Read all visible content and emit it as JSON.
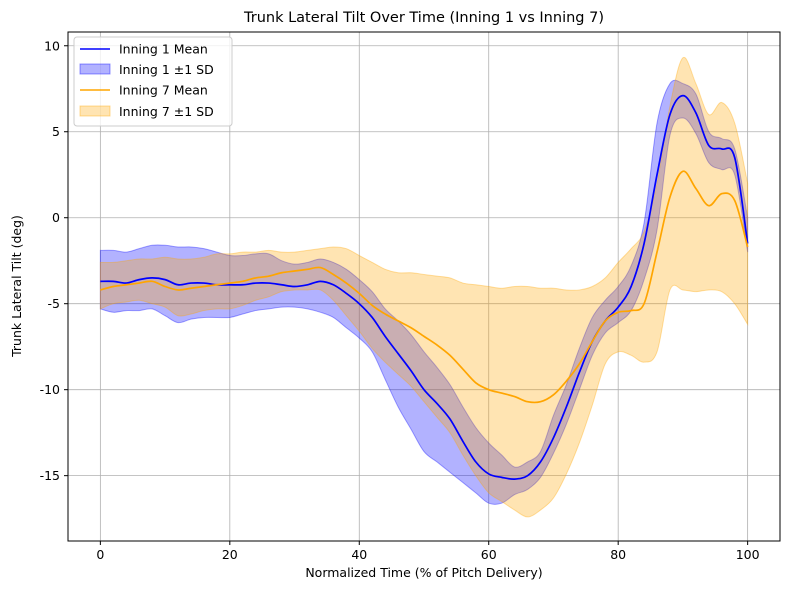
{
  "chart_data": {
    "type": "line",
    "title": "Trunk Lateral Tilt Over Time (Inning 1 vs Inning 7)",
    "xlabel": "Normalized Time (% of Pitch Delivery)",
    "ylabel": "Trunk Lateral Tilt (deg)",
    "xlim": [
      -5,
      105
    ],
    "ylim": [
      -18.8,
      10.8
    ],
    "xticks": [
      0,
      20,
      40,
      60,
      80,
      100
    ],
    "yticks": [
      -15,
      -10,
      -5,
      0,
      5,
      10
    ],
    "grid": true,
    "legend_position": "top-left",
    "x": [
      0,
      2,
      4,
      6,
      8,
      10,
      12,
      14,
      16,
      18,
      20,
      22,
      24,
      26,
      28,
      30,
      32,
      34,
      36,
      38,
      40,
      42,
      44,
      46,
      48,
      50,
      52,
      54,
      56,
      58,
      60,
      62,
      64,
      66,
      68,
      70,
      72,
      74,
      76,
      78,
      80,
      82,
      84,
      86,
      88,
      90,
      92,
      94,
      96,
      98,
      100
    ],
    "series": [
      {
        "name": "Inning 1 Mean",
        "kind": "mean",
        "color": "#0000ff",
        "values": [
          -3.7,
          -3.7,
          -3.8,
          -3.6,
          -3.5,
          -3.6,
          -3.9,
          -3.8,
          -3.8,
          -3.9,
          -3.9,
          -3.9,
          -3.8,
          -3.8,
          -3.9,
          -4.0,
          -3.9,
          -3.7,
          -3.9,
          -4.4,
          -5.0,
          -5.8,
          -6.9,
          -7.9,
          -8.9,
          -10.0,
          -10.8,
          -11.7,
          -13.0,
          -14.2,
          -14.9,
          -15.1,
          -15.2,
          -15.0,
          -14.2,
          -12.8,
          -11.0,
          -9.0,
          -7.2,
          -6.0,
          -5.2,
          -4.0,
          -1.5,
          2.5,
          6.0,
          7.1,
          6.1,
          4.2,
          4.0,
          3.5,
          -1.5
        ]
      },
      {
        "name": "Inning 1 ±1 SD",
        "kind": "band",
        "color": "#0000ff",
        "opacity": 0.3,
        "upper": [
          -1.9,
          -1.9,
          -2.0,
          -1.8,
          -1.6,
          -1.6,
          -1.7,
          -1.7,
          -1.8,
          -2.0,
          -2.2,
          -2.2,
          -2.1,
          -2.1,
          -2.5,
          -2.7,
          -2.6,
          -2.4,
          -2.6,
          -3.0,
          -3.6,
          -4.3,
          -5.3,
          -6.0,
          -6.8,
          -7.8,
          -8.7,
          -9.7,
          -11.0,
          -12.2,
          -13.1,
          -13.8,
          -14.5,
          -14.2,
          -13.6,
          -11.5,
          -9.7,
          -7.6,
          -5.8,
          -4.8,
          -4.0,
          -2.8,
          -0.3,
          5.5,
          7.8,
          7.8,
          7.2,
          5.0,
          4.6,
          4.0,
          0.0
        ],
        "lower": [
          -5.3,
          -5.5,
          -5.4,
          -5.4,
          -5.3,
          -5.7,
          -6.1,
          -5.9,
          -5.8,
          -5.8,
          -5.8,
          -5.6,
          -5.4,
          -5.3,
          -5.2,
          -5.2,
          -5.3,
          -5.5,
          -5.8,
          -6.4,
          -7.0,
          -7.8,
          -9.4,
          -11.0,
          -12.3,
          -13.6,
          -14.2,
          -14.8,
          -15.4,
          -16.0,
          -16.6,
          -16.6,
          -16.1,
          -15.8,
          -15.1,
          -13.7,
          -12.0,
          -10.0,
          -8.0,
          -6.7,
          -6.1,
          -5.4,
          -3.6,
          -0.7,
          4.8,
          5.8,
          4.9,
          3.2,
          2.8,
          2.5,
          -2.0
        ]
      },
      {
        "name": "Inning 7 Mean",
        "kind": "mean",
        "color": "#ffa500",
        "values": [
          -4.2,
          -4.0,
          -3.9,
          -3.8,
          -3.7,
          -4.0,
          -4.2,
          -4.1,
          -4.0,
          -3.9,
          -3.8,
          -3.7,
          -3.5,
          -3.4,
          -3.2,
          -3.1,
          -3.0,
          -2.9,
          -3.3,
          -3.8,
          -4.4,
          -5.1,
          -5.6,
          -6.0,
          -6.4,
          -6.9,
          -7.4,
          -8.0,
          -8.8,
          -9.6,
          -10.0,
          -10.2,
          -10.4,
          -10.7,
          -10.7,
          -10.3,
          -9.5,
          -8.5,
          -7.2,
          -6.0,
          -5.5,
          -5.4,
          -5.0,
          -2.0,
          1.2,
          2.7,
          1.7,
          0.7,
          1.4,
          1.0,
          -1.7
        ]
      },
      {
        "name": "Inning 7 ±1 SD",
        "kind": "band",
        "color": "#ffa500",
        "opacity": 0.3,
        "upper": [
          -2.6,
          -2.6,
          -2.5,
          -2.4,
          -2.4,
          -2.3,
          -2.4,
          -2.4,
          -2.3,
          -2.1,
          -2.1,
          -2.0,
          -2.0,
          -1.9,
          -2.0,
          -2.0,
          -1.9,
          -1.8,
          -1.7,
          -1.8,
          -2.2,
          -2.6,
          -3.0,
          -3.2,
          -3.2,
          -3.3,
          -3.4,
          -3.5,
          -3.8,
          -3.9,
          -4.0,
          -4.1,
          -4.0,
          -4.0,
          -4.1,
          -4.1,
          -4.2,
          -4.2,
          -4.0,
          -3.5,
          -2.6,
          -1.8,
          -0.8,
          2.0,
          6.5,
          9.3,
          7.8,
          6.0,
          6.7,
          5.5,
          2.0
        ],
        "lower": [
          -5.3,
          -5.0,
          -4.9,
          -4.8,
          -5.0,
          -5.2,
          -5.7,
          -5.6,
          -5.4,
          -5.3,
          -5.3,
          -5.1,
          -4.8,
          -4.6,
          -4.3,
          -4.2,
          -4.2,
          -4.2,
          -4.8,
          -5.7,
          -6.6,
          -7.6,
          -8.4,
          -9.1,
          -9.8,
          -10.7,
          -11.6,
          -12.5,
          -13.8,
          -15.0,
          -16.0,
          -16.5,
          -17.0,
          -17.4,
          -17.0,
          -16.3,
          -14.9,
          -13.1,
          -10.9,
          -8.5,
          -7.8,
          -8.0,
          -8.4,
          -7.8,
          -4.2,
          -4.2,
          -4.3,
          -4.2,
          -4.3,
          -5.0,
          -6.2
        ]
      }
    ],
    "legend": [
      {
        "label": "Inning 1 Mean",
        "type": "line",
        "color": "#0000ff"
      },
      {
        "label": "Inning 1 ±1 SD",
        "type": "patch",
        "color": "#0000ff"
      },
      {
        "label": "Inning 7 Mean",
        "type": "line",
        "color": "#ffa500"
      },
      {
        "label": "Inning 7 ±1 SD",
        "type": "patch",
        "color": "#ffa500"
      }
    ]
  }
}
